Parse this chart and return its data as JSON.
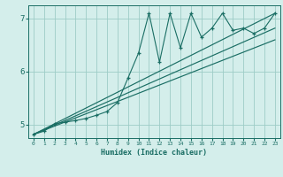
{
  "xlabel": "Humidex (Indice chaleur)",
  "bg_color": "#d4eeeb",
  "line_color": "#1a6e64",
  "grid_color": "#9eccc7",
  "xlim": [
    -0.5,
    23.5
  ],
  "ylim": [
    4.75,
    7.25
  ],
  "yticks": [
    5,
    6,
    7
  ],
  "xticks": [
    0,
    1,
    2,
    3,
    4,
    5,
    6,
    7,
    8,
    9,
    10,
    11,
    12,
    13,
    14,
    15,
    16,
    17,
    18,
    19,
    20,
    21,
    22,
    23
  ],
  "zigzag_x": [
    0,
    1,
    2,
    3,
    4,
    5,
    6,
    7,
    8,
    9,
    10,
    11,
    12,
    13,
    14,
    15,
    16,
    17,
    18,
    19,
    20,
    21,
    22,
    23
  ],
  "zigzag_y": [
    4.82,
    4.88,
    5.02,
    5.05,
    5.08,
    5.12,
    5.18,
    5.25,
    5.42,
    5.88,
    6.35,
    7.1,
    6.18,
    7.1,
    6.45,
    7.1,
    6.65,
    6.82,
    7.1,
    6.78,
    6.82,
    6.72,
    6.82,
    7.1
  ],
  "envelope_lines": [
    {
      "x0": 0,
      "y0": 4.82,
      "x1": 23,
      "y1": 7.1
    },
    {
      "x0": 0,
      "y0": 4.82,
      "x1": 23,
      "y1": 6.82
    },
    {
      "x0": 0,
      "y0": 4.82,
      "x1": 23,
      "y1": 6.6
    }
  ]
}
